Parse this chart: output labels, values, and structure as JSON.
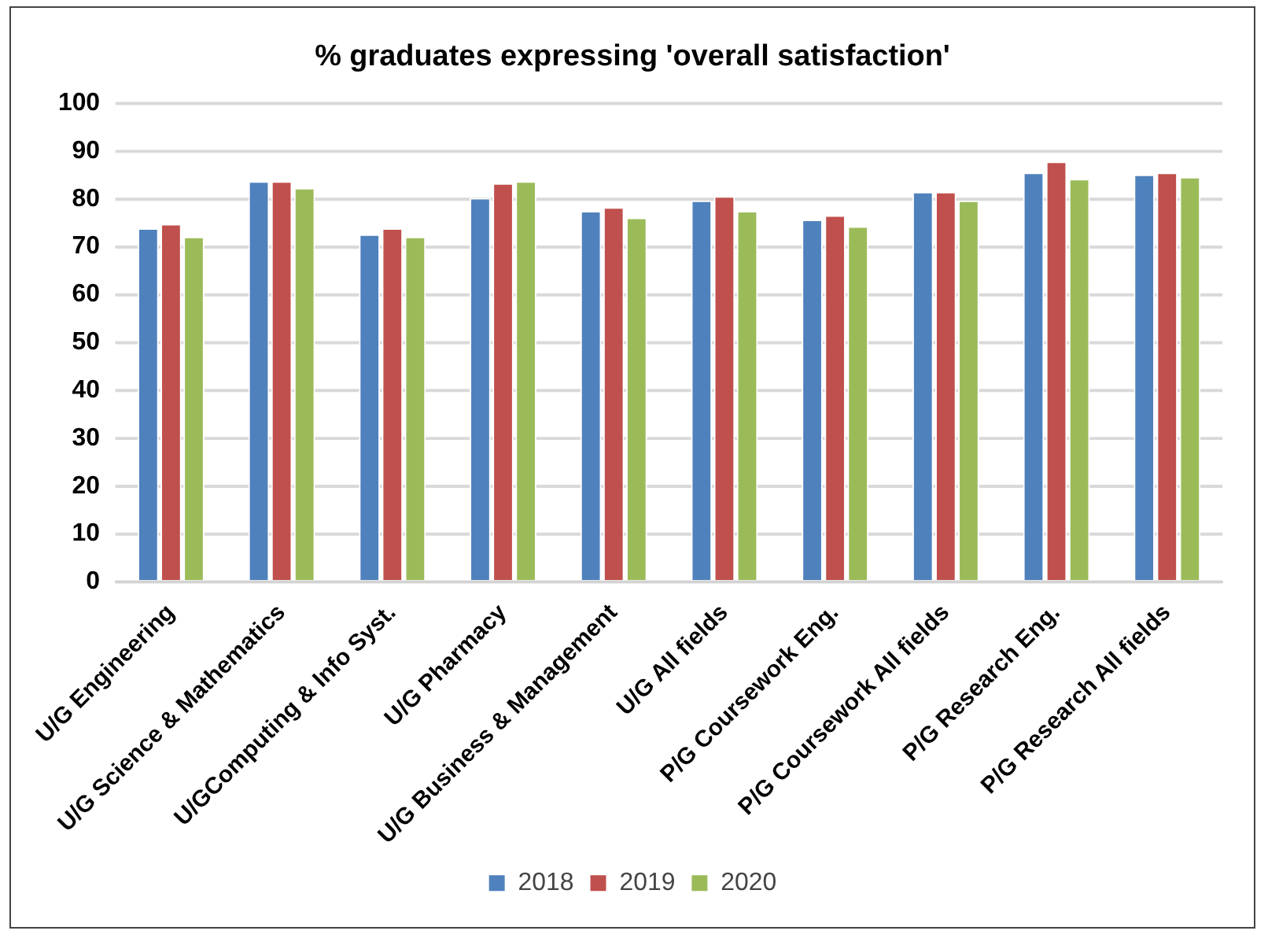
{
  "chart_data": {
    "type": "bar",
    "title": "% graduates expressing 'overall satisfaction'",
    "categories": [
      "U/G Engineering",
      "U/G Science & Mathematics",
      "U/GComputing & Info Syst.",
      "U/G Pharmacy",
      "U/G Business & Management",
      "U/G All fields",
      "P/G Coursework Eng.",
      "P/G Coursework All fields",
      "P/G Research Eng.",
      "P/G Research All fields"
    ],
    "series": [
      {
        "name": "2018",
        "color": "#4f81bd",
        "values": [
          73.9,
          83.7,
          72.6,
          80.2,
          77.5,
          79.7,
          75.7,
          81.5,
          85.5,
          85.1
        ]
      },
      {
        "name": "2019",
        "color": "#c0504d",
        "values": [
          74.8,
          83.7,
          73.9,
          83.3,
          78.3,
          80.6,
          76.6,
          81.5,
          87.8,
          85.5
        ]
      },
      {
        "name": "2020",
        "color": "#9bbb59",
        "values": [
          72.1,
          82.3,
          72.1,
          83.7,
          76.1,
          77.5,
          74.3,
          79.7,
          84.2,
          84.6
        ]
      }
    ],
    "ylim": [
      0,
      100
    ],
    "yticks": [
      0,
      10,
      20,
      30,
      40,
      50,
      60,
      70,
      80,
      90,
      100
    ],
    "grid": "y",
    "legend": "bottom"
  }
}
